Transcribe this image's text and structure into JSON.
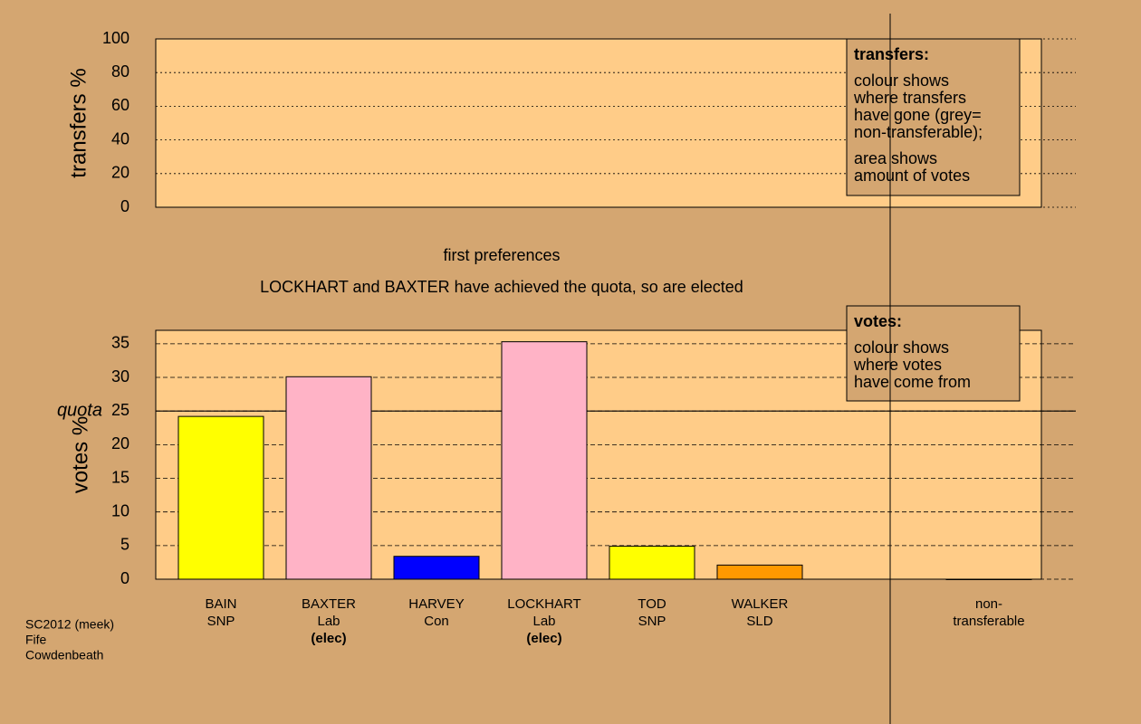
{
  "chart_data": [
    {
      "type": "bar",
      "ylabel": "transfers %",
      "ylim": [
        0,
        100
      ],
      "yticks": [
        0,
        20,
        40,
        60,
        80,
        100
      ],
      "grid": true,
      "note_title": "transfers:",
      "note_lines": [
        "colour shows",
        "where transfers",
        "have gone (grey=",
        "non-transferable);",
        "area shows",
        "amount of votes"
      ]
    },
    {
      "type": "bar",
      "subtitle": "first preferences",
      "annotation": "LOCKHART and BAXTER have achieved the quota, so are elected",
      "ylabel": "votes %",
      "ylim": [
        0,
        37
      ],
      "yticks": [
        0,
        5,
        10,
        15,
        20,
        25,
        30,
        35
      ],
      "grid": true,
      "quota": {
        "value": 25,
        "label": "quota"
      },
      "categories": [
        "BAIN",
        "BAXTER",
        "HARVEY",
        "LOCKHART",
        "TOD",
        "WALKER",
        "non-transferable"
      ],
      "parties": [
        "SNP",
        "Lab",
        "Con",
        "Lab",
        "SNP",
        "SLD",
        null
      ],
      "status": [
        null,
        "(elec)",
        null,
        "(elec)",
        null,
        null,
        null
      ],
      "values": [
        24.2,
        30.1,
        3.4,
        35.3,
        4.9,
        2.1,
        0
      ],
      "colors": [
        "#ffff00",
        "#ffb3c6",
        "#0000ff",
        "#ffb3c6",
        "#ffff00",
        "#ff9900",
        "#999999"
      ],
      "note_title": "votes:",
      "note_lines": [
        "colour shows",
        "where votes",
        "have come from"
      ]
    }
  ],
  "footer": [
    "SC2012 (meek)",
    "Fife",
    "Cowdenbeath"
  ]
}
